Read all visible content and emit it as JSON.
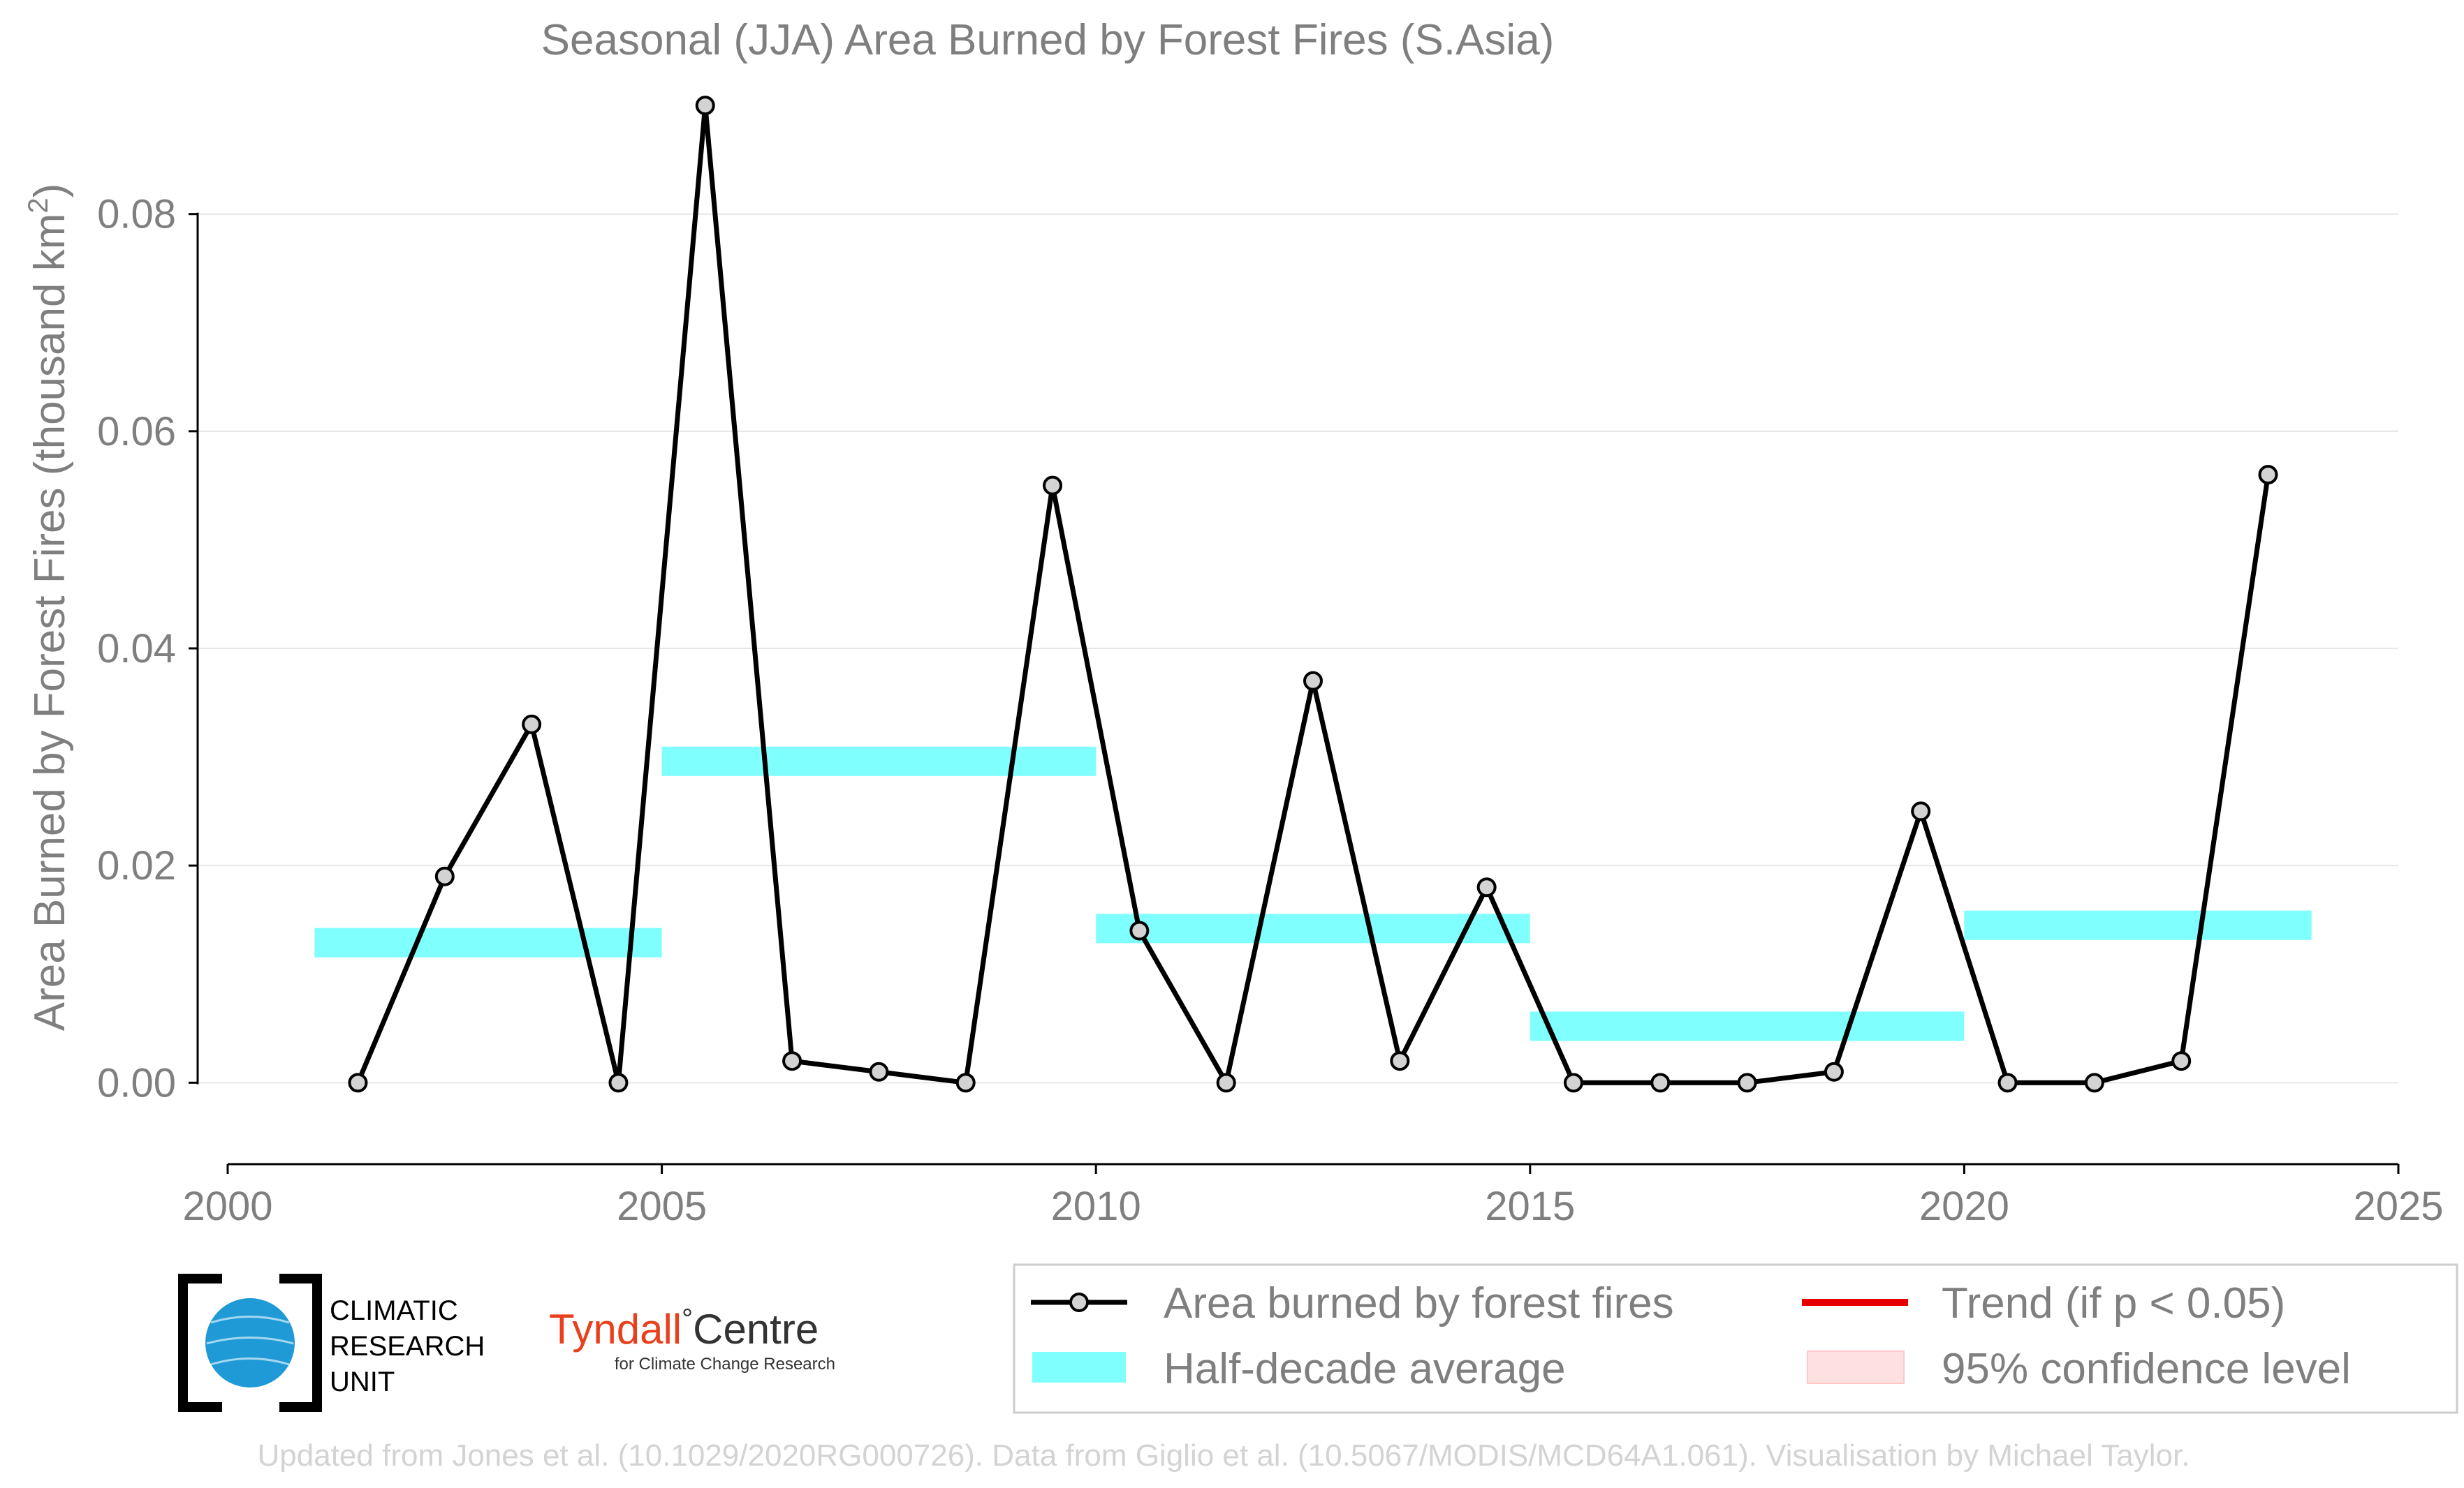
{
  "chart_data": {
    "type": "line",
    "title": "Seasonal (JJA) Area Burned by Forest Fires (S.Asia)",
    "ylabel_main": "Area Burned by Forest Fires (thousand km",
    "ylabel_sup": "2",
    "ylabel_close": ")",
    "xlim": [
      2000,
      2025
    ],
    "ylim": [
      -0.0075,
      0.092
    ],
    "x_ticks": [
      2000,
      2005,
      2010,
      2015,
      2020,
      2025
    ],
    "y_ticks": [
      0.0,
      0.02,
      0.04,
      0.06,
      0.08
    ],
    "x_tick_labels": [
      "2000",
      "2005",
      "2010",
      "2015",
      "2020",
      "2025"
    ],
    "y_tick_labels": [
      "0.00",
      "0.02",
      "0.04",
      "0.06",
      "0.08"
    ],
    "grid": "horizontal",
    "series": [
      {
        "name": "Area burned by forest fires",
        "color": "#000000",
        "marker_fill": "#d3d3d3",
        "x": [
          2001.5,
          2002.5,
          2003.5,
          2004.5,
          2005.5,
          2006.5,
          2007.5,
          2008.5,
          2009.5,
          2010.5,
          2011.5,
          2012.5,
          2013.5,
          2014.5,
          2015.5,
          2016.5,
          2017.5,
          2018.5,
          2019.5,
          2020.5,
          2021.5,
          2022.5,
          2023.5
        ],
        "y": [
          0.0,
          0.019,
          0.033,
          0.0,
          0.09,
          0.002,
          0.001,
          0.0,
          0.055,
          0.014,
          0.0,
          0.037,
          0.002,
          0.018,
          0.0,
          0.0,
          0.0,
          0.001,
          0.025,
          0.0,
          0.0,
          0.002,
          0.056
        ]
      }
    ],
    "half_decade_average": {
      "name": "Half-decade average",
      "color": "#80ffff",
      "segments": [
        {
          "x0": 2001,
          "x1": 2005,
          "y": 0.0129
        },
        {
          "x0": 2005,
          "x1": 2010,
          "y": 0.0296
        },
        {
          "x0": 2010,
          "x1": 2015,
          "y": 0.0142
        },
        {
          "x0": 2015,
          "x1": 2020,
          "y": 0.0052
        },
        {
          "x0": 2020,
          "x1": 2024,
          "y": 0.0145
        }
      ]
    },
    "legend": {
      "placement": "bottom-right",
      "entries": [
        {
          "label": "Area burned by forest fires",
          "kind": "line-marker",
          "color": "#000000"
        },
        {
          "label": "Trend (if p < 0.05)",
          "kind": "line",
          "color": "#e60000"
        },
        {
          "label": "Half-decade average",
          "kind": "band",
          "color": "#80ffff"
        },
        {
          "label": "95% confidence level",
          "kind": "band",
          "color": "#ffe0e0"
        }
      ]
    }
  },
  "logos": {
    "cru_lines": [
      "CLIMATIC",
      "RESEARCH",
      "UNIT"
    ],
    "tyndall_main": "Tyndall",
    "tyndall_degree": "°",
    "tyndall_centre": "Centre",
    "tyndall_sub": "for Climate Change Research"
  },
  "footer": "Updated from Jones et al. (10.1029/2020RG000726). Data from Giglio et al. (10.5067/MODIS/MCD64A1.061). Visualisation by Michael Taylor.",
  "colors": {
    "text_gray": "#7f7f7f",
    "grid": "#e6e6e6",
    "cyan": "#80ffff",
    "trend_red": "#e60000",
    "ci_pink": "#ffe0e0",
    "cru_blue": "#1f9ad6",
    "tyndall_red": "#e8401c"
  }
}
